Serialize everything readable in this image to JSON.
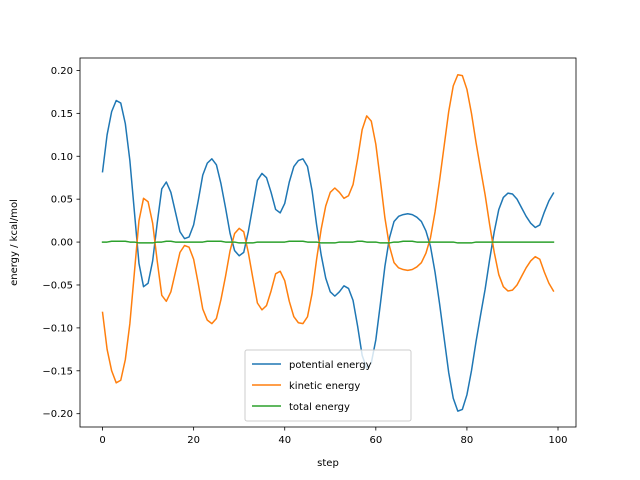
{
  "chart_data": {
    "type": "line",
    "title": "",
    "xlabel": "step",
    "ylabel": "energy / kcal/mol",
    "xlim": [
      -4.95,
      103.95
    ],
    "ylim": [
      -0.2155,
      0.2145
    ],
    "xticks": [
      0,
      20,
      40,
      60,
      80,
      100
    ],
    "xtick_labels": [
      "0",
      "20",
      "40",
      "60",
      "80",
      "100"
    ],
    "yticks": [
      -0.2,
      -0.15,
      -0.1,
      -0.05,
      0.0,
      0.05,
      0.1,
      0.15,
      0.2
    ],
    "ytick_labels": [
      "−0.20",
      "−0.15",
      "−0.10",
      "−0.05",
      "0.00",
      "0.05",
      "0.10",
      "0.15",
      "0.20"
    ],
    "grid": false,
    "legend_position": "lower center",
    "series": [
      {
        "name": "potential energy",
        "color": "#1f77b4",
        "x": [
          0,
          1,
          2,
          3,
          4,
          5,
          6,
          7,
          8,
          9,
          10,
          11,
          12,
          13,
          14,
          15,
          16,
          17,
          18,
          19,
          20,
          21,
          22,
          23,
          24,
          25,
          26,
          27,
          28,
          29,
          30,
          31,
          32,
          33,
          34,
          35,
          36,
          37,
          38,
          39,
          40,
          41,
          42,
          43,
          44,
          45,
          46,
          47,
          48,
          49,
          50,
          51,
          52,
          53,
          54,
          55,
          56,
          57,
          58,
          59,
          60,
          61,
          62,
          63,
          64,
          65,
          66,
          67,
          68,
          69,
          70,
          71,
          72,
          73,
          74,
          75,
          76,
          77,
          78,
          79,
          80,
          81,
          82,
          83,
          84,
          85,
          86,
          87,
          88,
          89,
          90,
          91,
          92,
          93,
          94,
          95,
          96,
          97,
          98,
          99
        ],
        "y": [
          0.082,
          0.125,
          0.152,
          0.165,
          0.162,
          0.138,
          0.095,
          0.035,
          -0.025,
          -0.052,
          -0.048,
          -0.022,
          0.022,
          0.062,
          0.07,
          0.058,
          0.035,
          0.012,
          0.004,
          0.006,
          0.02,
          0.048,
          0.078,
          0.092,
          0.097,
          0.09,
          0.068,
          0.04,
          0.01,
          -0.01,
          -0.016,
          -0.012,
          0.012,
          0.042,
          0.072,
          0.08,
          0.075,
          0.058,
          0.038,
          0.034,
          0.045,
          0.07,
          0.088,
          0.095,
          0.097,
          0.088,
          0.06,
          0.02,
          -0.015,
          -0.042,
          -0.058,
          -0.063,
          -0.058,
          -0.051,
          -0.054,
          -0.068,
          -0.098,
          -0.132,
          -0.147,
          -0.141,
          -0.114,
          -0.072,
          -0.028,
          0.005,
          0.024,
          0.03,
          0.032,
          0.033,
          0.032,
          0.029,
          0.024,
          0.013,
          -0.005,
          -0.035,
          -0.072,
          -0.112,
          -0.152,
          -0.182,
          -0.197,
          -0.195,
          -0.178,
          -0.15,
          -0.116,
          -0.085,
          -0.055,
          -0.02,
          0.012,
          0.038,
          0.052,
          0.057,
          0.056,
          0.05,
          0.04,
          0.03,
          0.022,
          0.017,
          0.02,
          0.035,
          0.048,
          0.057
        ]
      },
      {
        "name": "kinetic energy",
        "color": "#ff7f0e",
        "x": [
          0,
          1,
          2,
          3,
          4,
          5,
          6,
          7,
          8,
          9,
          10,
          11,
          12,
          13,
          14,
          15,
          16,
          17,
          18,
          19,
          20,
          21,
          22,
          23,
          24,
          25,
          26,
          27,
          28,
          29,
          30,
          31,
          32,
          33,
          34,
          35,
          36,
          37,
          38,
          39,
          40,
          41,
          42,
          43,
          44,
          45,
          46,
          47,
          48,
          49,
          50,
          51,
          52,
          53,
          54,
          55,
          56,
          57,
          58,
          59,
          60,
          61,
          62,
          63,
          64,
          65,
          66,
          67,
          68,
          69,
          70,
          71,
          72,
          73,
          74,
          75,
          76,
          77,
          78,
          79,
          80,
          81,
          82,
          83,
          84,
          85,
          86,
          87,
          88,
          89,
          90,
          91,
          92,
          93,
          94,
          95,
          96,
          97,
          98,
          99
        ],
        "y": [
          -0.082,
          -0.125,
          -0.15,
          -0.164,
          -0.161,
          -0.137,
          -0.095,
          -0.035,
          0.025,
          0.051,
          0.047,
          0.022,
          -0.022,
          -0.062,
          -0.069,
          -0.058,
          -0.035,
          -0.012,
          -0.004,
          -0.006,
          -0.02,
          -0.048,
          -0.078,
          -0.091,
          -0.095,
          -0.089,
          -0.067,
          -0.04,
          -0.01,
          0.01,
          0.016,
          0.012,
          -0.012,
          -0.042,
          -0.071,
          -0.079,
          -0.074,
          -0.057,
          -0.037,
          -0.034,
          -0.045,
          -0.069,
          -0.087,
          -0.094,
          -0.095,
          -0.087,
          -0.06,
          -0.02,
          0.015,
          0.042,
          0.058,
          0.063,
          0.058,
          0.051,
          0.054,
          0.067,
          0.097,
          0.131,
          0.147,
          0.141,
          0.114,
          0.072,
          0.028,
          -0.005,
          -0.024,
          -0.03,
          -0.032,
          -0.033,
          -0.032,
          -0.029,
          -0.024,
          -0.013,
          0.005,
          0.035,
          0.072,
          0.112,
          0.152,
          0.182,
          0.195,
          0.194,
          0.178,
          0.15,
          0.116,
          0.085,
          0.055,
          0.02,
          -0.012,
          -0.038,
          -0.052,
          -0.057,
          -0.056,
          -0.05,
          -0.04,
          -0.03,
          -0.022,
          -0.017,
          -0.02,
          -0.035,
          -0.048,
          -0.057
        ]
      },
      {
        "name": "total energy",
        "color": "#2ca02c",
        "x": [
          0,
          1,
          2,
          3,
          4,
          5,
          6,
          7,
          8,
          9,
          10,
          11,
          12,
          13,
          14,
          15,
          16,
          17,
          18,
          19,
          20,
          21,
          22,
          23,
          24,
          25,
          26,
          27,
          28,
          29,
          30,
          31,
          32,
          33,
          34,
          35,
          36,
          37,
          38,
          39,
          40,
          41,
          42,
          43,
          44,
          45,
          46,
          47,
          48,
          49,
          50,
          51,
          52,
          53,
          54,
          55,
          56,
          57,
          58,
          59,
          60,
          61,
          62,
          63,
          64,
          65,
          66,
          67,
          68,
          69,
          70,
          71,
          72,
          73,
          74,
          75,
          76,
          77,
          78,
          79,
          80,
          81,
          82,
          83,
          84,
          85,
          86,
          87,
          88,
          89,
          90,
          91,
          92,
          93,
          94,
          95,
          96,
          97,
          98,
          99
        ],
        "y": [
          0.0,
          0.0,
          0.001,
          0.001,
          0.001,
          0.001,
          0.0,
          0.0,
          -0.001,
          -0.001,
          -0.001,
          -0.001,
          0.0,
          0.0,
          0.001,
          0.001,
          0.0,
          0.0,
          0.0,
          0.0,
          0.0,
          0.0,
          0.0,
          0.001,
          0.001,
          0.001,
          0.001,
          0.0,
          0.0,
          0.0,
          -0.001,
          -0.001,
          -0.001,
          -0.001,
          0.0,
          0.0,
          0.0,
          0.0,
          0.0,
          0.0,
          0.0,
          0.001,
          0.001,
          0.001,
          0.001,
          0.0,
          0.0,
          0.0,
          -0.001,
          -0.001,
          -0.001,
          -0.001,
          0.0,
          0.0,
          0.0,
          0.0,
          0.001,
          0.001,
          0.0,
          0.0,
          0.0,
          -0.001,
          -0.001,
          -0.001,
          0.0,
          0.0,
          0.001,
          0.001,
          0.001,
          0.0,
          0.0,
          0.0,
          0.0,
          0.0,
          0.0,
          0.0,
          0.0,
          0.0,
          -0.001,
          -0.001,
          -0.001,
          -0.001,
          0.0,
          0.0,
          0.0,
          0.0,
          0.0,
          0.0,
          0.0,
          0.0,
          0.0,
          0.0,
          0.0,
          0.0,
          0.0,
          0.0,
          0.0,
          0.0,
          0.0,
          0.0
        ]
      }
    ]
  }
}
